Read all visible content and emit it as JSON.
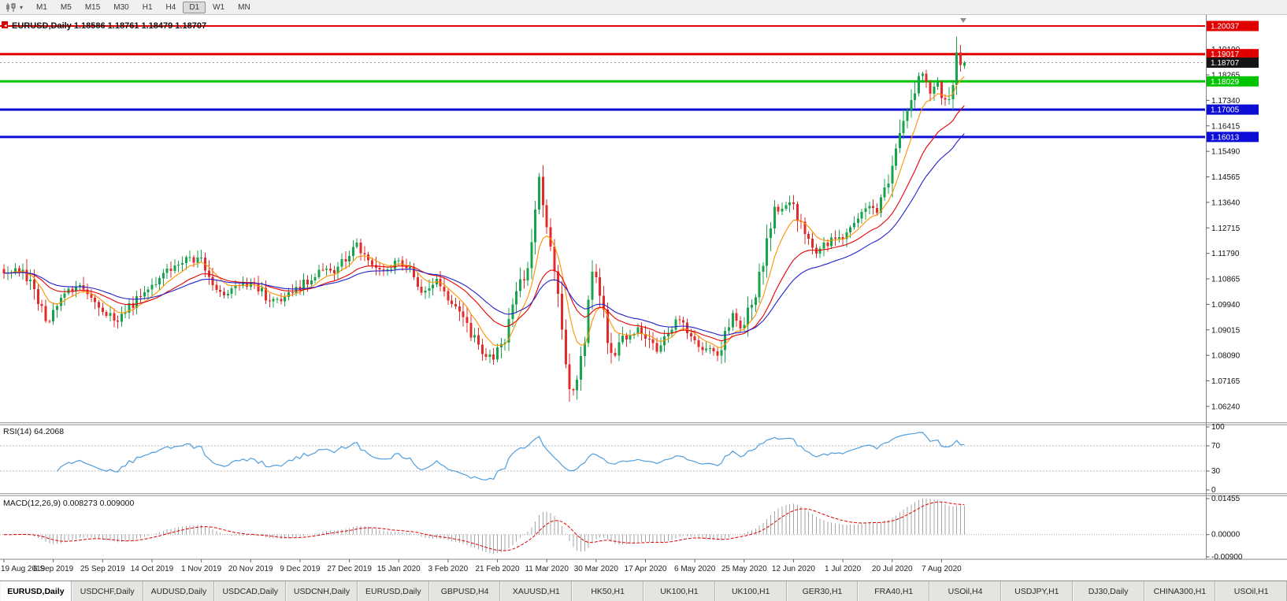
{
  "toolbar": {
    "chart_icon": "candlestick-chart-icon",
    "dropdown_icon": "chevron-down-icon",
    "timeframes": [
      "M1",
      "M5",
      "M15",
      "M30",
      "H1",
      "H4",
      "D1",
      "W1",
      "MN"
    ],
    "active_timeframe": "D1"
  },
  "main_chart": {
    "title_symbol": "EURUSD,Daily",
    "title_ohlc": "1.18586 1.18761 1.18479 1.18707",
    "price_axis_ticks": [
      "1.19190",
      "1.18265",
      "1.17340",
      "1.16415",
      "1.15490",
      "1.14565",
      "1.13640",
      "1.12715",
      "1.11790",
      "1.10865",
      "1.09940",
      "1.09015",
      "1.08090",
      "1.07165",
      "1.06240"
    ],
    "hlines": [
      {
        "price": 1.20037,
        "label": "1.20037",
        "color": "#e00000",
        "width": 2
      },
      {
        "price": 1.19017,
        "label": "1.19017",
        "color": "#e00000",
        "width": 3
      },
      {
        "price": 1.18029,
        "label": "1.18029",
        "color": "#00c400",
        "width": 3
      },
      {
        "price": 1.17005,
        "label": "1.17005",
        "color": "#0d0dd6",
        "width": 3
      },
      {
        "price": 1.16013,
        "label": "1.16013",
        "color": "#0d0dd6",
        "width": 3
      }
    ],
    "bid": {
      "price": 1.18707,
      "label": "1.18707",
      "box_color": "#151515",
      "line_color": "#9a9a9a"
    },
    "colors": {
      "up": "#18a44c",
      "down": "#e22c2c",
      "background": "#ffffff",
      "axis_text": "#111111"
    }
  },
  "rsi_panel": {
    "label": "RSI(14) 64.2068",
    "value": 64.2068,
    "period": 14,
    "ticks": [
      {
        "v": 100,
        "label": "100"
      },
      {
        "v": 70,
        "label": "70"
      },
      {
        "v": 30,
        "label": "30"
      },
      {
        "v": 0,
        "label": "0"
      }
    ],
    "levels": [
      70,
      30
    ],
    "line_color": "#4f9ede"
  },
  "macd_panel": {
    "label": "MACD(12,26,9) 0.008273 0.009000",
    "macd_value": 0.008273,
    "signal_value": 0.009,
    "max": 0.01455,
    "min": -0.009,
    "ticks": [
      {
        "v": 0.01455,
        "label": "0.01455"
      },
      {
        "v": 0,
        "label": "0.00000"
      },
      {
        "v": -0.009,
        "label": "-0.00900"
      }
    ],
    "histogram_color": "#a6a6a6",
    "signal_color": "#e00000"
  },
  "tabs": {
    "active_index": 0,
    "items": [
      "EURUSD,Daily",
      "USDCHF,Daily",
      "AUDUSD,Daily",
      "USDCAD,Daily",
      "USDCNH,Daily",
      "EURUSD,Daily",
      "GBPUSD,H4",
      "XAUUSD,H1",
      "HK50,H1",
      "UK100,H1",
      "UK100,H1",
      "GER30,H1",
      "FRA40,H1",
      "USOil,H4",
      "USDJPY,H1",
      "DJ30,Daily",
      "CHINA300,H1",
      "USOil,H1"
    ]
  },
  "chart_data": {
    "type": "candlestick",
    "symbol": "EURUSD",
    "timeframe": "Daily",
    "candle_count": 254,
    "last_candle": {
      "o": 1.18586,
      "h": 1.18761,
      "l": 1.18479,
      "c": 1.18707
    },
    "current_price": 1.18707,
    "spike": {
      "index": 251,
      "high": 1.1965
    },
    "visible_price_range": [
      1.0577,
      1.2044
    ],
    "price_anchors": [
      [
        0,
        1.1095
      ],
      [
        5,
        1.113
      ],
      [
        9,
        1.0992
      ],
      [
        12,
        1.093
      ],
      [
        16,
        1.1045
      ],
      [
        20,
        1.1068
      ],
      [
        24,
        1.0995
      ],
      [
        30,
        1.0932
      ],
      [
        33,
        1.0985
      ],
      [
        38,
        1.1042
      ],
      [
        44,
        1.1128
      ],
      [
        48,
        1.1152
      ],
      [
        52,
        1.116
      ],
      [
        57,
        1.1022
      ],
      [
        61,
        1.1048
      ],
      [
        65,
        1.1078
      ],
      [
        70,
        1.101
      ],
      [
        74,
        1.1018
      ],
      [
        78,
        1.1062
      ],
      [
        83,
        1.1118
      ],
      [
        88,
        1.1122
      ],
      [
        93,
        1.1212
      ],
      [
        97,
        1.114
      ],
      [
        100,
        1.1108
      ],
      [
        104,
        1.1148
      ],
      [
        108,
        1.1098
      ],
      [
        110,
        1.1022
      ],
      [
        114,
        1.109
      ],
      [
        118,
        1.1
      ],
      [
        121,
        1.0946
      ],
      [
        125,
        1.084
      ],
      [
        129,
        1.0786
      ],
      [
        132,
        1.088
      ],
      [
        135,
        1.1026
      ],
      [
        138,
        1.1135
      ],
      [
        141,
        1.1456
      ],
      [
        143,
        1.1284
      ],
      [
        145,
        1.1108
      ],
      [
        147,
        1.092
      ],
      [
        149,
        1.066
      ],
      [
        151,
        1.072
      ],
      [
        153,
        1.086
      ],
      [
        155,
        1.114
      ],
      [
        157,
        1.103
      ],
      [
        160,
        1.08
      ],
      [
        163,
        1.0868
      ],
      [
        167,
        1.0912
      ],
      [
        170,
        1.087
      ],
      [
        172,
        1.0818
      ],
      [
        175,
        1.088
      ],
      [
        177,
        1.0952
      ],
      [
        180,
        1.0902
      ],
      [
        184,
        1.0838
      ],
      [
        188,
        1.0802
      ],
      [
        192,
        1.0955
      ],
      [
        194,
        1.0898
      ],
      [
        197,
        1.0985
      ],
      [
        199,
        1.11
      ],
      [
        203,
        1.1335
      ],
      [
        207,
        1.1378
      ],
      [
        211,
        1.1262
      ],
      [
        214,
        1.1178
      ],
      [
        217,
        1.1215
      ],
      [
        221,
        1.1248
      ],
      [
        224,
        1.1288
      ],
      [
        227,
        1.1332
      ],
      [
        230,
        1.134
      ],
      [
        233,
        1.1428
      ],
      [
        236,
        1.1585
      ],
      [
        239,
        1.1752
      ],
      [
        242,
        1.1846
      ],
      [
        244,
        1.1758
      ],
      [
        246,
        1.1788
      ],
      [
        248,
        1.1725
      ],
      [
        250,
        1.179
      ],
      [
        251,
        1.1908
      ],
      [
        252,
        1.1862
      ],
      [
        253,
        1.18707
      ]
    ],
    "x_labels": [
      "19 Aug 2019",
      "6 Sep 2019",
      "25 Sep 2019",
      "14 Oct 2019",
      "1 Nov 2019",
      "20 Nov 2019",
      "9 Dec 2019",
      "27 Dec 2019",
      "15 Jan 2020",
      "3 Feb 2020",
      "21 Feb 2020",
      "11 Mar 2020",
      "30 Mar 2020",
      "17 Apr 2020",
      "6 May 2020",
      "25 May 2020",
      "12 Jun 2020",
      "1 Jul 2020",
      "20 Jul 2020",
      "7 Aug 2020"
    ],
    "x_label_step": 13,
    "moving_averages": [
      {
        "name": "ma-fast",
        "type": "EMA",
        "period": 8,
        "color": "#ff9100"
      },
      {
        "name": "ma-mid",
        "type": "EMA",
        "period": 21,
        "color": "#e60000"
      },
      {
        "name": "ma-slow",
        "type": "EMA",
        "period": 34,
        "color": "#2121cc"
      }
    ]
  }
}
